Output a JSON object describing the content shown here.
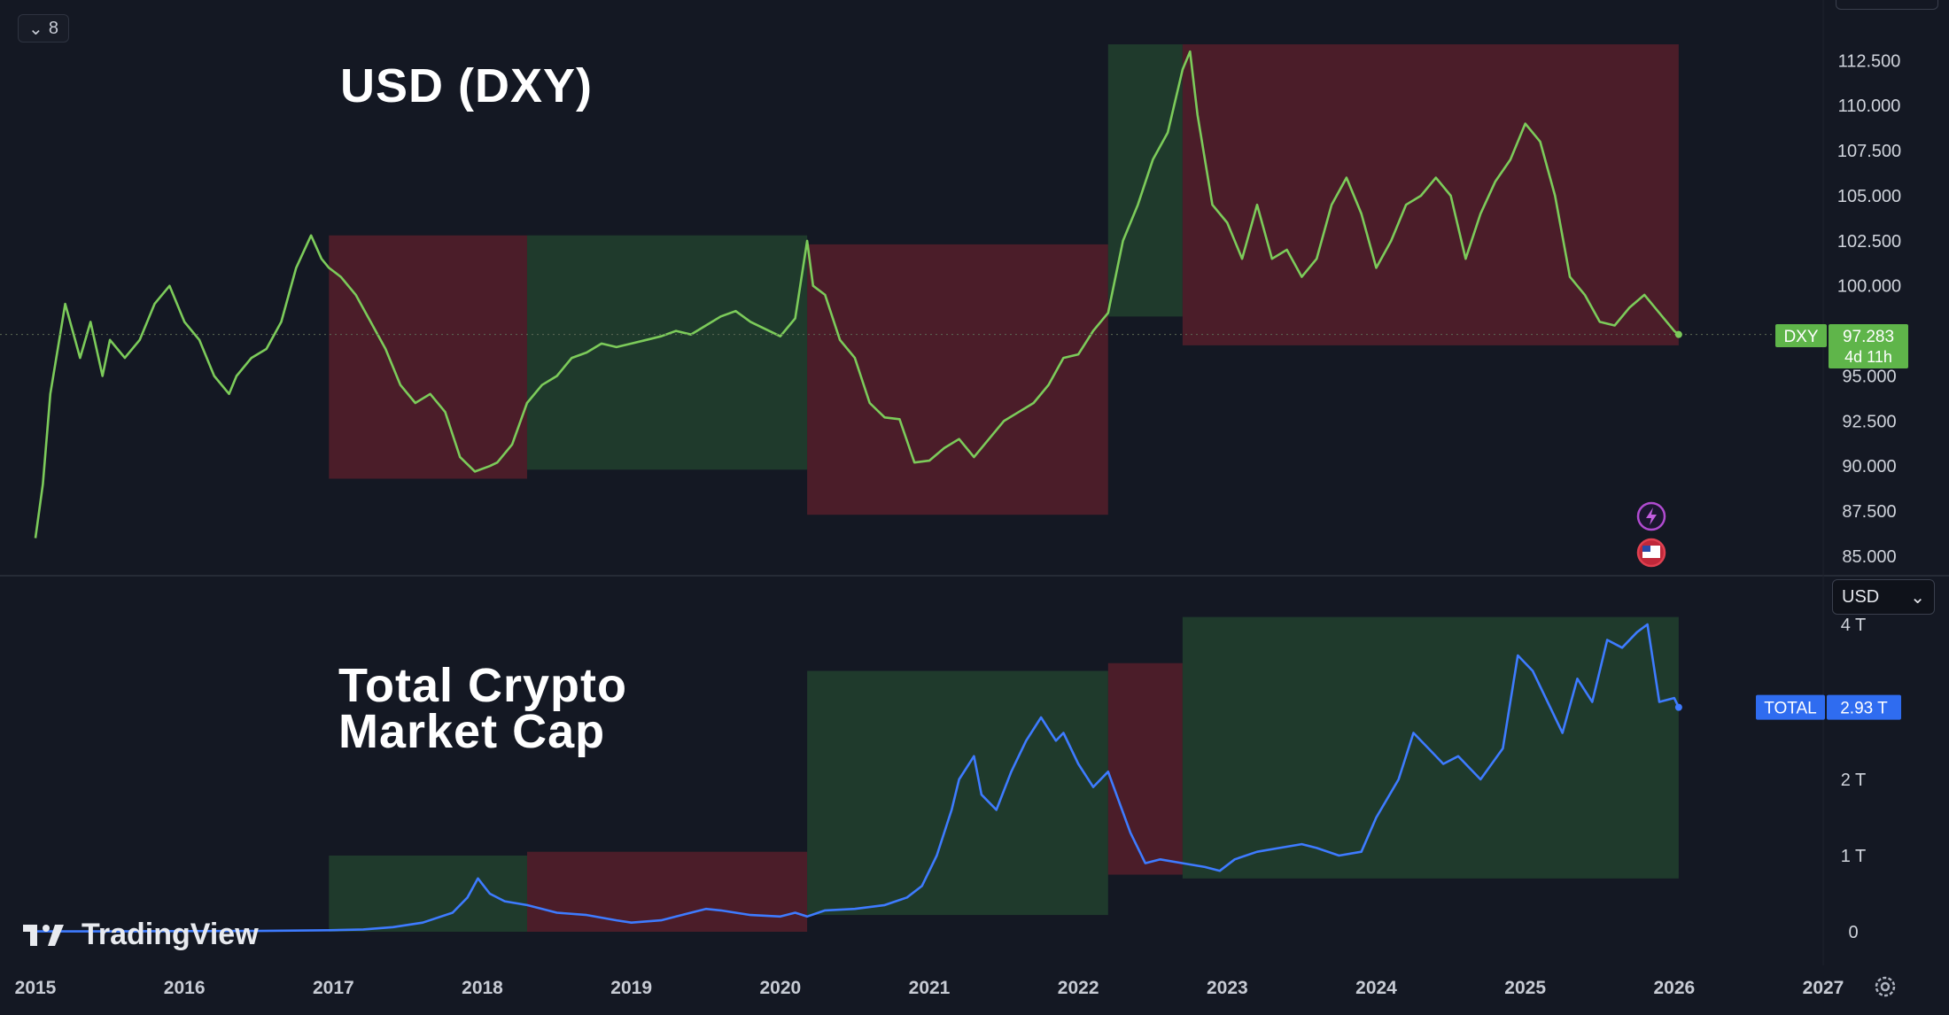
{
  "chart_data": [
    {
      "type": "line",
      "title": "USD (DXY)",
      "series": [
        {
          "name": "DXY",
          "color": "#7ccb5a",
          "x": [
            2015.0,
            2015.05,
            2015.1,
            2015.2,
            2015.3,
            2015.37,
            2015.45,
            2015.5,
            2015.6,
            2015.7,
            2015.8,
            2015.9,
            2016.0,
            2016.1,
            2016.2,
            2016.3,
            2016.35,
            2016.45,
            2016.55,
            2016.65,
            2016.75,
            2016.85,
            2016.92,
            2016.97,
            2017.05,
            2017.15,
            2017.25,
            2017.35,
            2017.45,
            2017.55,
            2017.65,
            2017.75,
            2017.85,
            2017.95,
            2018.05,
            2018.1,
            2018.2,
            2018.3,
            2018.4,
            2018.5,
            2018.6,
            2018.7,
            2018.8,
            2018.9,
            2019.0,
            2019.1,
            2019.2,
            2019.3,
            2019.4,
            2019.5,
            2019.6,
            2019.7,
            2019.8,
            2019.9,
            2020.0,
            2020.1,
            2020.18,
            2020.22,
            2020.3,
            2020.4,
            2020.5,
            2020.6,
            2020.7,
            2020.8,
            2020.9,
            2021.0,
            2021.1,
            2021.2,
            2021.3,
            2021.4,
            2021.5,
            2021.6,
            2021.7,
            2021.8,
            2021.9,
            2022.0,
            2022.1,
            2022.2,
            2022.3,
            2022.4,
            2022.5,
            2022.6,
            2022.7,
            2022.75,
            2022.8,
            2022.9,
            2023.0,
            2023.1,
            2023.2,
            2023.3,
            2023.4,
            2023.5,
            2023.6,
            2023.7,
            2023.8,
            2023.9,
            2024.0,
            2024.1,
            2024.2,
            2024.3,
            2024.4,
            2024.5,
            2024.6,
            2024.7,
            2024.8,
            2024.9,
            2025.0,
            2025.1,
            2025.2,
            2025.3,
            2025.4,
            2025.5,
            2025.6,
            2025.7,
            2025.8,
            2025.9,
            2026.0,
            2026.03
          ],
          "values": [
            86,
            89,
            94,
            99,
            96,
            98,
            95,
            97,
            96,
            97,
            99,
            100,
            98,
            97,
            95,
            94,
            95,
            96,
            96.5,
            98,
            101,
            102.8,
            101.5,
            101,
            100.5,
            99.5,
            98,
            96.5,
            94.5,
            93.5,
            94,
            93,
            90.5,
            89.7,
            90,
            90.2,
            91.2,
            93.5,
            94.5,
            95,
            96,
            96.3,
            96.8,
            96.6,
            96.8,
            97,
            97.2,
            97.5,
            97.3,
            97.8,
            98.3,
            98.6,
            98,
            97.6,
            97.2,
            98.2,
            102.5,
            100,
            99.5,
            97,
            96,
            93.5,
            92.7,
            92.6,
            90.2,
            90.3,
            91,
            91.5,
            90.5,
            91.5,
            92.5,
            93,
            93.5,
            94.5,
            96,
            96.2,
            97.5,
            98.5,
            102.5,
            104.5,
            107,
            108.5,
            112,
            113,
            109.5,
            104.5,
            103.5,
            101.5,
            104.5,
            101.5,
            102,
            100.5,
            101.5,
            104.5,
            106,
            104,
            101,
            102.5,
            104.5,
            105,
            106,
            105,
            101.5,
            104,
            105.8,
            107,
            109,
            108,
            105,
            100.5,
            99.5,
            98,
            97.8,
            98.8,
            99.5,
            98.5,
            97.5,
            97.3
          ]
        }
      ],
      "ylim": [
        85,
        113.5
      ],
      "y_ticks": [
        "112.500",
        "110.000",
        "107.500",
        "105.000",
        "102.500",
        "100.000",
        "97.500",
        "95.000",
        "92.500",
        "90.000",
        "87.500",
        "85.000"
      ],
      "last_value_label": "DXY",
      "last_value": "97.283",
      "last_value_countdown": "4d 11h",
      "regions": [
        {
          "x0": 2016.97,
          "x1": 2018.3,
          "y0": 89.3,
          "y1": 102.8,
          "color": "red"
        },
        {
          "x0": 2018.3,
          "x1": 2020.18,
          "y0": 89.8,
          "y1": 102.8,
          "color": "green"
        },
        {
          "x0": 2020.18,
          "x1": 2022.2,
          "y0": 87.3,
          "y1": 102.3,
          "color": "red"
        },
        {
          "x0": 2022.2,
          "x1": 2022.7,
          "y0": 98.3,
          "y1": 113.4,
          "color": "green"
        },
        {
          "x0": 2022.7,
          "x1": 2026.03,
          "y0": 96.7,
          "y1": 113.4,
          "color": "red"
        }
      ]
    },
    {
      "type": "line",
      "title": "Total Crypto Market Cap",
      "series": [
        {
          "name": "TOTAL",
          "color": "#3e7bff",
          "x": [
            2015.0,
            2015.5,
            2016.0,
            2016.5,
            2016.97,
            2017.2,
            2017.4,
            2017.6,
            2017.8,
            2017.9,
            2017.97,
            2018.05,
            2018.15,
            2018.3,
            2018.5,
            2018.7,
            2018.9,
            2019.0,
            2019.2,
            2019.4,
            2019.5,
            2019.6,
            2019.8,
            2020.0,
            2020.1,
            2020.18,
            2020.3,
            2020.5,
            2020.7,
            2020.85,
            2020.95,
            2021.05,
            2021.15,
            2021.2,
            2021.3,
            2021.35,
            2021.45,
            2021.55,
            2021.65,
            2021.75,
            2021.85,
            2021.9,
            2022.0,
            2022.1,
            2022.2,
            2022.35,
            2022.45,
            2022.55,
            2022.7,
            2022.85,
            2022.95,
            2023.05,
            2023.2,
            2023.35,
            2023.5,
            2023.6,
            2023.75,
            2023.9,
            2024.0,
            2024.15,
            2024.25,
            2024.35,
            2024.45,
            2024.55,
            2024.7,
            2024.85,
            2024.95,
            2025.05,
            2025.15,
            2025.25,
            2025.35,
            2025.45,
            2025.55,
            2025.65,
            2025.75,
            2025.82,
            2025.9,
            2026.0,
            2026.03
          ],
          "values": [
            0.005,
            0.005,
            0.008,
            0.01,
            0.02,
            0.03,
            0.06,
            0.12,
            0.25,
            0.45,
            0.7,
            0.5,
            0.4,
            0.35,
            0.25,
            0.22,
            0.15,
            0.12,
            0.15,
            0.25,
            0.3,
            0.28,
            0.22,
            0.2,
            0.25,
            0.2,
            0.28,
            0.3,
            0.35,
            0.45,
            0.6,
            1.0,
            1.6,
            2.0,
            2.3,
            1.8,
            1.6,
            2.1,
            2.5,
            2.8,
            2.5,
            2.6,
            2.2,
            1.9,
            2.1,
            1.3,
            0.9,
            0.95,
            0.9,
            0.85,
            0.8,
            0.95,
            1.05,
            1.1,
            1.15,
            1.1,
            1.0,
            1.05,
            1.5,
            2.0,
            2.6,
            2.4,
            2.2,
            2.3,
            2.0,
            2.4,
            3.6,
            3.4,
            3.0,
            2.6,
            3.3,
            3.0,
            3.8,
            3.7,
            3.9,
            4.0,
            3.0,
            3.05,
            2.93
          ]
        }
      ],
      "ylim": [
        -0.1,
        4.3
      ],
      "y_ticks": [
        "4 T",
        "2 T",
        "1 T",
        "0"
      ],
      "currency": "USD",
      "last_value_label": "TOTAL",
      "last_value": "2.93 T",
      "regions": [
        {
          "x0": 2016.97,
          "x1": 2018.3,
          "y0": 0.0,
          "y1": 1.0,
          "color": "green"
        },
        {
          "x0": 2018.3,
          "x1": 2020.18,
          "y0": 0.0,
          "y1": 1.05,
          "color": "red"
        },
        {
          "x0": 2020.18,
          "x1": 2022.2,
          "y0": 0.22,
          "y1": 3.4,
          "color": "green"
        },
        {
          "x0": 2022.2,
          "x1": 2022.7,
          "y0": 0.75,
          "y1": 3.5,
          "color": "red"
        },
        {
          "x0": 2022.7,
          "x1": 2026.03,
          "y0": 0.7,
          "y1": 4.1,
          "color": "green"
        }
      ]
    }
  ],
  "x_axis": {
    "ticks": [
      "2015",
      "2016",
      "2017",
      "2018",
      "2019",
      "2020",
      "2021",
      "2022",
      "2023",
      "2024",
      "2025",
      "2026",
      "2027"
    ]
  },
  "collapse_count": "8",
  "watermark": "TradingView"
}
